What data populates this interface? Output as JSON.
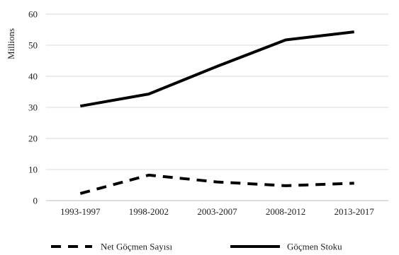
{
  "chart_data": {
    "type": "line",
    "title": "",
    "xlabel": "",
    "ylabel": "Millions",
    "categories": [
      "1993-1997",
      "1998-2002",
      "2003-2007",
      "2008-2012",
      "2013-2017"
    ],
    "ylim": [
      0,
      60
    ],
    "yticks": [
      0,
      10,
      20,
      30,
      40,
      50,
      60
    ],
    "grid": true,
    "legend_position": "bottom",
    "series": [
      {
        "name": "Net Göçmen Sayısı",
        "values": [
          2.3,
          8.2,
          6.0,
          4.8,
          5.6
        ],
        "style": "dashed",
        "color": "#000000"
      },
      {
        "name": "Göçmen Stoku",
        "values": [
          30.4,
          34.3,
          43.2,
          51.7,
          54.3
        ],
        "style": "solid",
        "color": "#000000"
      }
    ]
  }
}
